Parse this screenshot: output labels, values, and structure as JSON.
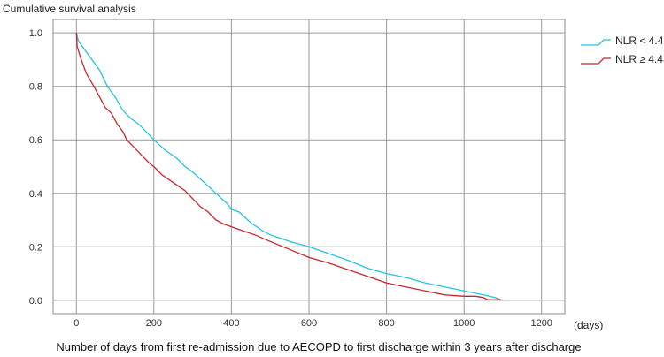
{
  "chart_data": {
    "type": "line",
    "title": "",
    "ylabel": "Cumulative survival analysis",
    "xlabel": "Number of days from first re-admission due to AECOPD to first discharge within 3 years after discharge",
    "x_unit": "(days)",
    "xlim": [
      -60,
      1260
    ],
    "ylim": [
      -0.05,
      1.05
    ],
    "x_ticks": [
      0,
      200,
      400,
      600,
      800,
      1000,
      1200
    ],
    "y_ticks": [
      0.0,
      0.2,
      0.4,
      0.6,
      0.8,
      1.0
    ],
    "x_tick_labels": [
      "0",
      "200",
      "400",
      "600",
      "800",
      "1000",
      "1200"
    ],
    "y_tick_labels": [
      "0.0",
      "0.2",
      "0.4",
      "0.6",
      "0.8",
      "1.0"
    ],
    "grid": true,
    "legend_position": "top-right",
    "series": [
      {
        "name": "NLR < 4.43",
        "color": "#22c3e0",
        "points": [
          [
            0,
            1.0
          ],
          [
            5,
            0.97
          ],
          [
            20,
            0.94
          ],
          [
            40,
            0.9
          ],
          [
            60,
            0.86
          ],
          [
            80,
            0.8
          ],
          [
            100,
            0.76
          ],
          [
            120,
            0.71
          ],
          [
            140,
            0.68
          ],
          [
            160,
            0.66
          ],
          [
            180,
            0.63
          ],
          [
            200,
            0.6
          ],
          [
            230,
            0.56
          ],
          [
            260,
            0.53
          ],
          [
            280,
            0.5
          ],
          [
            300,
            0.48
          ],
          [
            330,
            0.44
          ],
          [
            360,
            0.4
          ],
          [
            390,
            0.36
          ],
          [
            400,
            0.34
          ],
          [
            420,
            0.33
          ],
          [
            450,
            0.29
          ],
          [
            480,
            0.26
          ],
          [
            500,
            0.245
          ],
          [
            550,
            0.22
          ],
          [
            600,
            0.2
          ],
          [
            650,
            0.175
          ],
          [
            700,
            0.15
          ],
          [
            750,
            0.12
          ],
          [
            800,
            0.1
          ],
          [
            850,
            0.085
          ],
          [
            900,
            0.065
          ],
          [
            950,
            0.05
          ],
          [
            1000,
            0.035
          ],
          [
            1050,
            0.02
          ],
          [
            1080,
            0.01
          ],
          [
            1090,
            0.005
          ]
        ]
      },
      {
        "name": "NLR ≥ 4.43",
        "color": "#c8272d",
        "points": [
          [
            0,
            1.0
          ],
          [
            2,
            0.95
          ],
          [
            10,
            0.91
          ],
          [
            25,
            0.85
          ],
          [
            45,
            0.8
          ],
          [
            60,
            0.76
          ],
          [
            75,
            0.72
          ],
          [
            90,
            0.7
          ],
          [
            105,
            0.66
          ],
          [
            120,
            0.63
          ],
          [
            130,
            0.6
          ],
          [
            150,
            0.57
          ],
          [
            170,
            0.54
          ],
          [
            190,
            0.51
          ],
          [
            200,
            0.5
          ],
          [
            220,
            0.47
          ],
          [
            250,
            0.44
          ],
          [
            280,
            0.41
          ],
          [
            300,
            0.38
          ],
          [
            320,
            0.35
          ],
          [
            340,
            0.33
          ],
          [
            360,
            0.3
          ],
          [
            380,
            0.285
          ],
          [
            400,
            0.275
          ],
          [
            430,
            0.26
          ],
          [
            460,
            0.245
          ],
          [
            500,
            0.22
          ],
          [
            550,
            0.19
          ],
          [
            600,
            0.16
          ],
          [
            650,
            0.14
          ],
          [
            700,
            0.115
          ],
          [
            750,
            0.09
          ],
          [
            800,
            0.065
          ],
          [
            850,
            0.05
          ],
          [
            900,
            0.035
          ],
          [
            950,
            0.02
          ],
          [
            1000,
            0.015
          ],
          [
            1030,
            0.015
          ],
          [
            1050,
            0.01
          ],
          [
            1060,
            0.003
          ],
          [
            1080,
            0.002
          ],
          [
            1095,
            0.003
          ]
        ]
      }
    ]
  }
}
